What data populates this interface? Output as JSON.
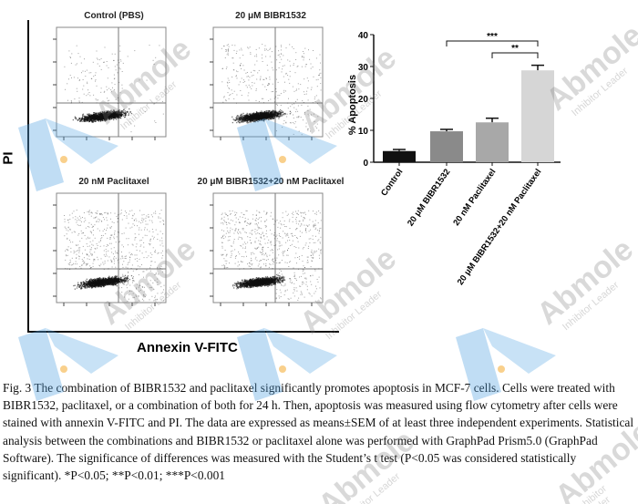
{
  "flow_panels": [
    {
      "title": "Control (PBS)"
    },
    {
      "title": "20 μM BIBR1532"
    },
    {
      "title": "20 nM Paclitaxel"
    },
    {
      "title": "20 μM BIBR1532+20 nM Paclitaxel"
    }
  ],
  "flow_axes": {
    "y_label": "PI",
    "x_label": "Annexin V-FITC"
  },
  "chart_data": {
    "type": "bar",
    "categories": [
      "Control",
      "20 μM BIBR1532",
      "20 nM Paclitaxel",
      "20 μM BIBR1532+20 nM Paclitaxel"
    ],
    "values": [
      3.5,
      9.7,
      12.5,
      28.8
    ],
    "errors": [
      0.5,
      0.6,
      1.3,
      1.6
    ],
    "colors": [
      "#111111",
      "#8a8a8a",
      "#a8a8a8",
      "#d6d6d6"
    ],
    "ylabel": "% Apoptosis",
    "ylim": [
      0,
      40
    ],
    "yticks": [
      "0",
      "10",
      "20",
      "30",
      "40"
    ],
    "significance": [
      {
        "from": 1,
        "to": 3,
        "label": "***"
      },
      {
        "from": 2,
        "to": 3,
        "label": "**"
      }
    ]
  },
  "caption": "Fig. 3 The combination of BIBR1532 and paclitaxel significantly promotes apoptosis in MCF-7 cells. Cells were treated with BIBR1532, paclitaxel, or a combination of both for 24 h. Then, apoptosis was measured using flow cytometry after cells were stained with annexin V-FITC and PI. The data are expressed as means±SEM of at least three independent experiments. Statistical analysis between the combinations and BIBR1532 or paclitaxel alone was performed with GraphPad Prism5.0 (GraphPad Software). The significance of differences was measured with the Student’s t test (P<0.05 was considered statistically significant). *P<0.05; **P<0.01; ***P<0.001",
  "watermark": {
    "brand": "Abmole",
    "tagline": "Inhibitor Leader"
  }
}
